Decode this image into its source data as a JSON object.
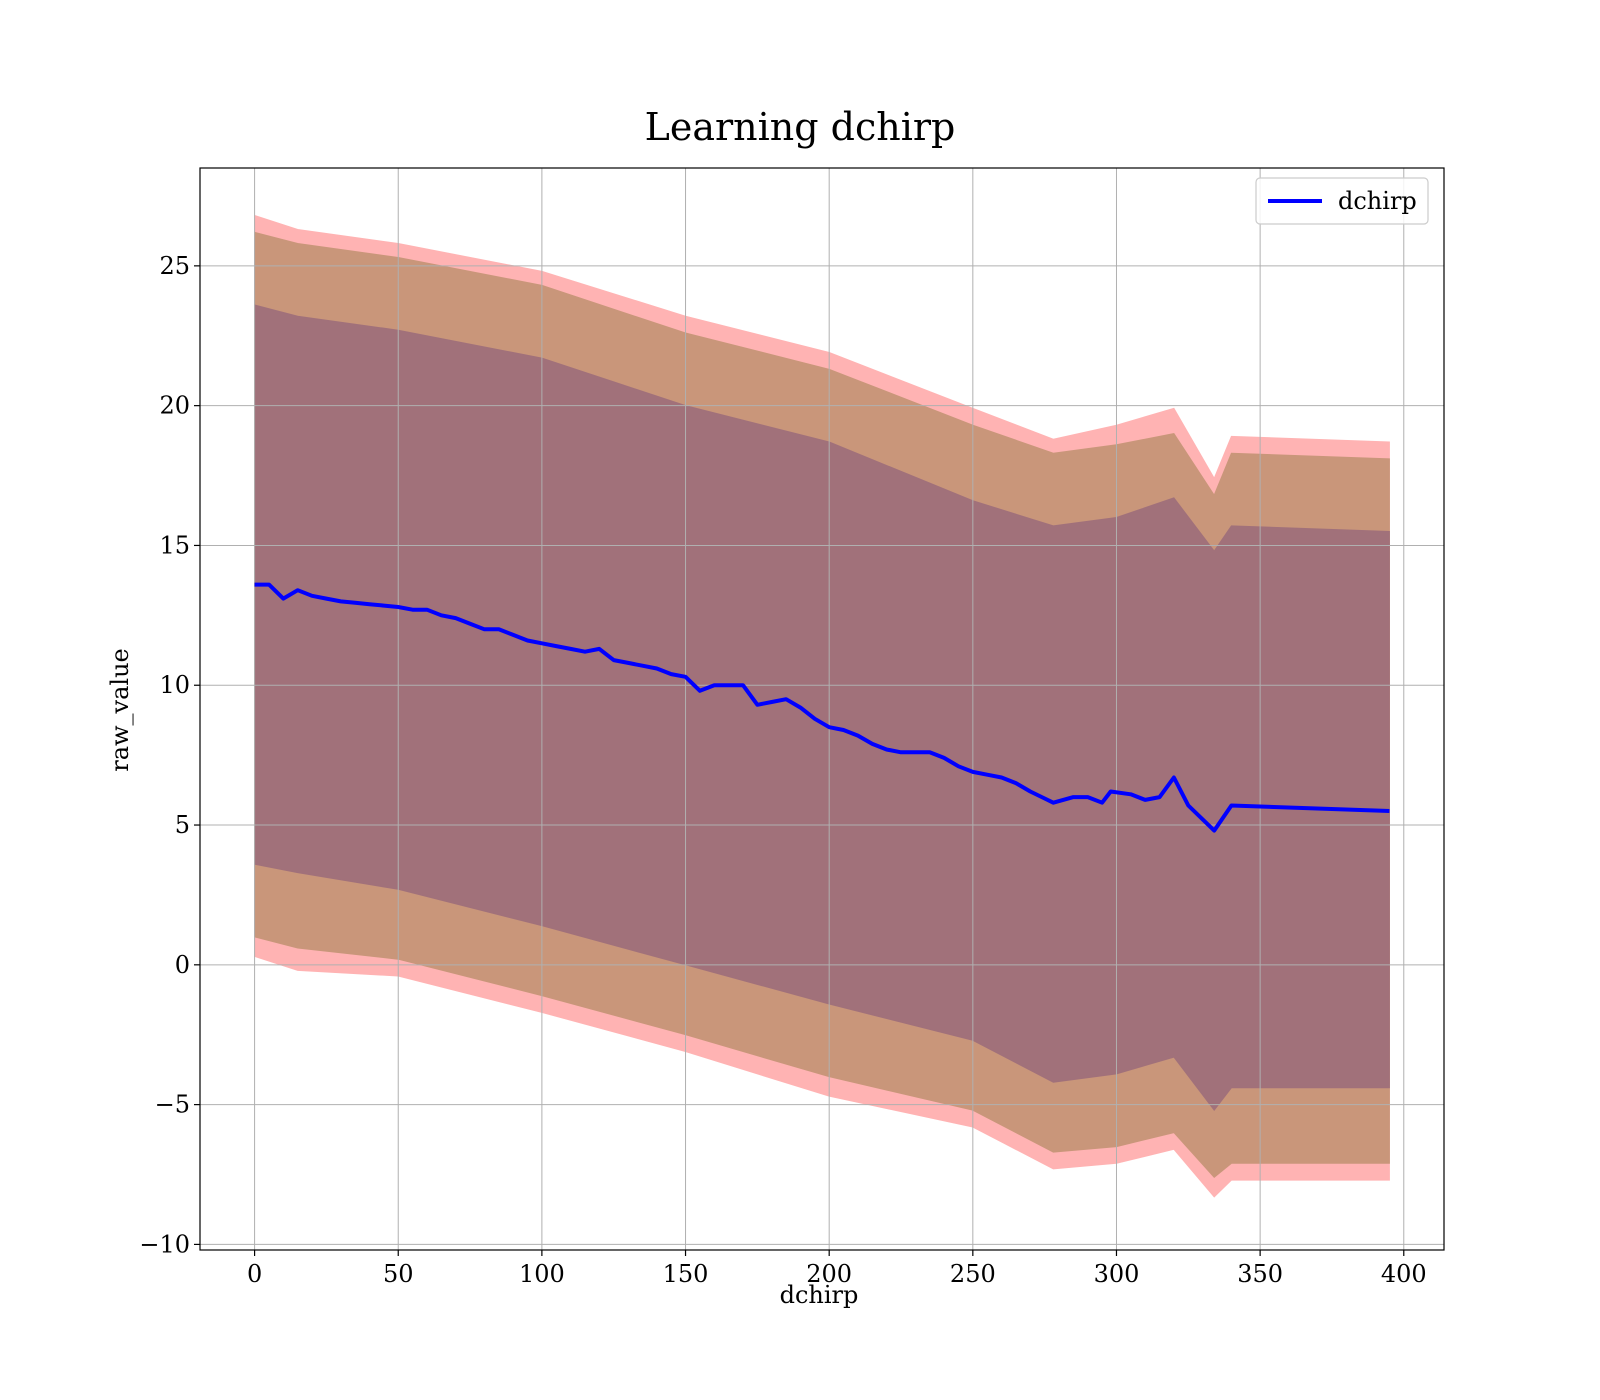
{
  "chart_data": {
    "type": "line",
    "title": "Learning dchirp",
    "xlabel": "dchirp",
    "ylabel": "raw_value",
    "xlim": [
      -19,
      414
    ],
    "ylim": [
      -10.2,
      28.5
    ],
    "grid": true,
    "legend_position": "top-right",
    "x_ticks": [
      0,
      50,
      100,
      150,
      200,
      250,
      300,
      350,
      400
    ],
    "x_tick_labels": [
      "0",
      "50",
      "100",
      "150",
      "200",
      "250",
      "300",
      "350",
      "400"
    ],
    "y_ticks": [
      -10,
      -5,
      0,
      5,
      10,
      15,
      20,
      25
    ],
    "y_tick_labels": [
      "−10",
      "−5",
      "0",
      "5",
      "10",
      "15",
      "20",
      "25"
    ],
    "colors": {
      "line": "#0000ff",
      "band_inner": "#a1717a",
      "band_middle": "#c9967a",
      "band_outer": "#ffb3b3",
      "grid": "#b0b0b0"
    },
    "series": [
      {
        "name": "dchirp",
        "x": [
          0,
          5,
          10,
          15,
          20,
          25,
          30,
          35,
          40,
          45,
          50,
          55,
          60,
          65,
          70,
          75,
          80,
          85,
          90,
          95,
          100,
          105,
          110,
          115,
          120,
          125,
          130,
          135,
          140,
          145,
          150,
          155,
          160,
          165,
          170,
          175,
          180,
          185,
          190,
          195,
          200,
          205,
          210,
          215,
          220,
          225,
          230,
          235,
          240,
          245,
          250,
          255,
          260,
          265,
          270,
          275,
          278,
          285,
          290,
          295,
          298,
          305,
          310,
          315,
          320,
          325,
          334,
          340,
          395
        ],
        "y": [
          13.6,
          13.6,
          13.1,
          13.4,
          13.2,
          13.1,
          13.0,
          12.95,
          12.9,
          12.85,
          12.8,
          12.7,
          12.7,
          12.5,
          12.4,
          12.2,
          12.0,
          12.0,
          11.8,
          11.6,
          11.5,
          11.4,
          11.3,
          11.2,
          11.3,
          10.9,
          10.8,
          10.7,
          10.6,
          10.4,
          10.3,
          9.8,
          10.0,
          10.0,
          10.0,
          9.3,
          9.4,
          9.5,
          9.2,
          8.8,
          8.5,
          8.4,
          8.2,
          7.9,
          7.7,
          7.6,
          7.6,
          7.6,
          7.4,
          7.1,
          6.9,
          6.8,
          6.7,
          6.5,
          6.2,
          5.95,
          5.8,
          6.0,
          6.0,
          5.8,
          6.2,
          6.1,
          5.9,
          6.0,
          6.7,
          5.7,
          4.8,
          5.7,
          5.5
        ]
      }
    ],
    "bands": [
      {
        "label": "outer",
        "x": [
          0,
          15,
          50,
          100,
          150,
          200,
          250,
          278,
          300,
          320,
          334,
          340,
          395
        ],
        "upper": [
          26.8,
          26.3,
          25.8,
          24.8,
          23.2,
          21.9,
          19.9,
          18.8,
          19.3,
          19.9,
          17.4,
          18.9,
          18.7
        ],
        "lower": [
          0.3,
          -0.2,
          -0.4,
          -1.7,
          -3.1,
          -4.7,
          -5.8,
          -7.3,
          -7.1,
          -6.6,
          -8.3,
          -7.7,
          -7.7
        ]
      },
      {
        "label": "middle",
        "x": [
          0,
          15,
          50,
          100,
          150,
          200,
          250,
          278,
          300,
          320,
          334,
          340,
          395
        ],
        "upper": [
          26.2,
          25.8,
          25.3,
          24.3,
          22.6,
          21.3,
          19.3,
          18.3,
          18.6,
          19.0,
          16.8,
          18.3,
          18.1
        ],
        "lower": [
          1.0,
          0.6,
          0.2,
          -1.1,
          -2.5,
          -4.0,
          -5.2,
          -6.7,
          -6.5,
          -6.0,
          -7.6,
          -7.1,
          -7.1
        ]
      },
      {
        "label": "inner",
        "x": [
          0,
          15,
          50,
          100,
          150,
          200,
          250,
          278,
          300,
          320,
          334,
          340,
          395
        ],
        "upper": [
          23.6,
          23.2,
          22.7,
          21.7,
          20.0,
          18.7,
          16.6,
          15.7,
          16.0,
          16.7,
          14.8,
          15.7,
          15.5
        ],
        "lower": [
          3.6,
          3.3,
          2.7,
          1.4,
          0.0,
          -1.4,
          -2.7,
          -4.2,
          -3.9,
          -3.3,
          -5.2,
          -4.4,
          -4.4
        ]
      }
    ]
  }
}
